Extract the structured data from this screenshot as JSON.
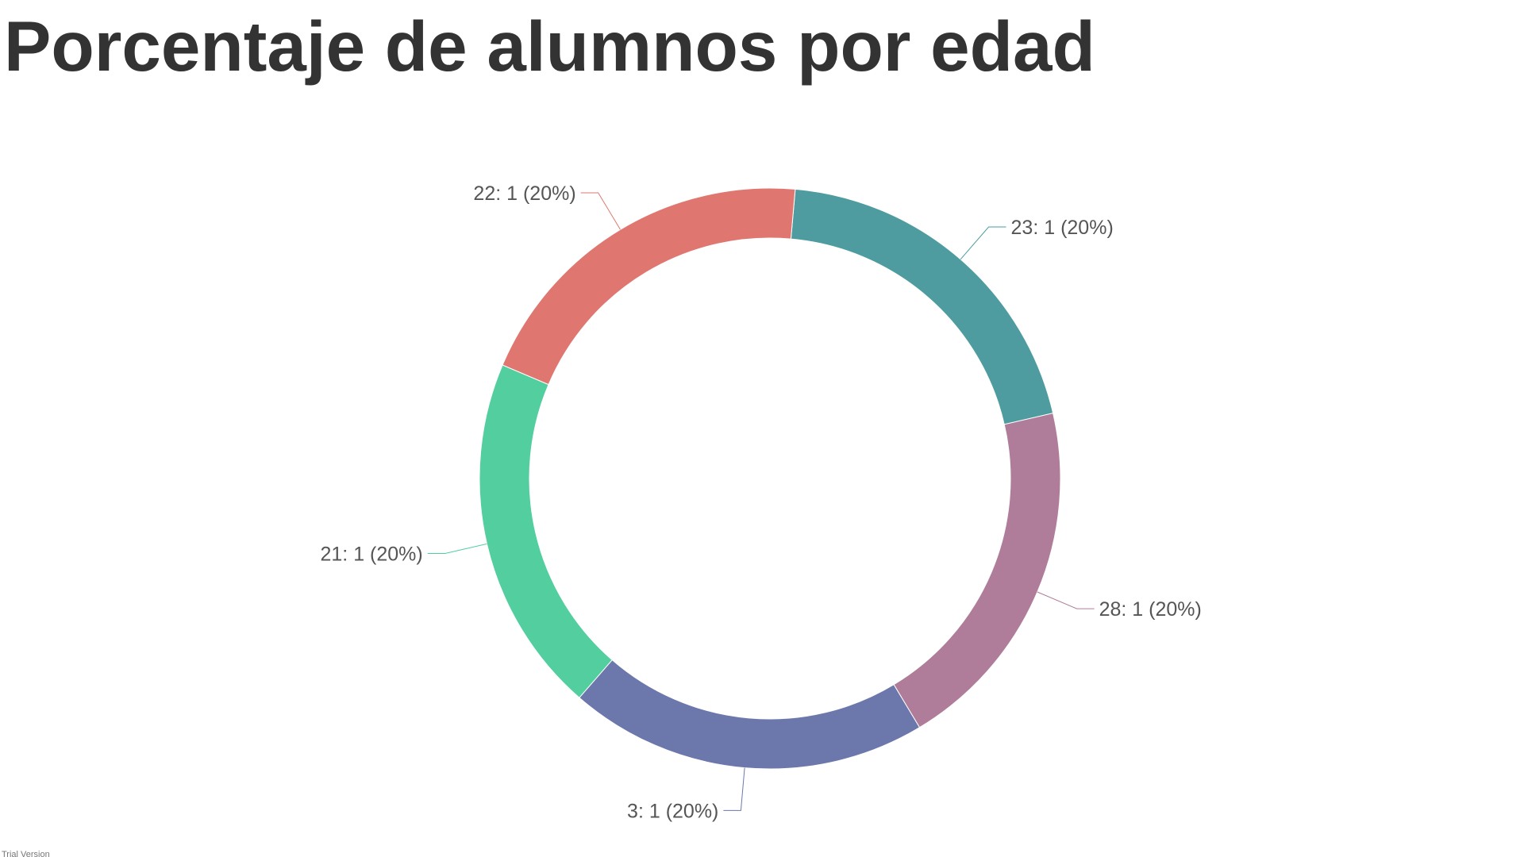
{
  "title": "Porcentaje de alumnos por edad",
  "watermark": "Trial Version",
  "chart_data": {
    "type": "pie",
    "variant": "donut",
    "title": "Porcentaje de alumnos por edad",
    "legend": "none",
    "start_angle_deg": 5,
    "slices": [
      {
        "category": "23",
        "value": 1,
        "percent": 20,
        "label": "23: 1 (20%)",
        "color": "#4E9C9F"
      },
      {
        "category": "28",
        "value": 1,
        "percent": 20,
        "label": "28: 1 (20%)",
        "color": "#AF7D99"
      },
      {
        "category": "3",
        "value": 1,
        "percent": 20,
        "label": "3: 1 (20%)",
        "color": "#6C77AC"
      },
      {
        "category": "21",
        "value": 1,
        "percent": 20,
        "label": "21: 1 (20%)",
        "color": "#52CE9F"
      },
      {
        "category": "22",
        "value": 1,
        "percent": 20,
        "label": "22: 1 (20%)",
        "color": "#DF7770"
      }
    ]
  }
}
